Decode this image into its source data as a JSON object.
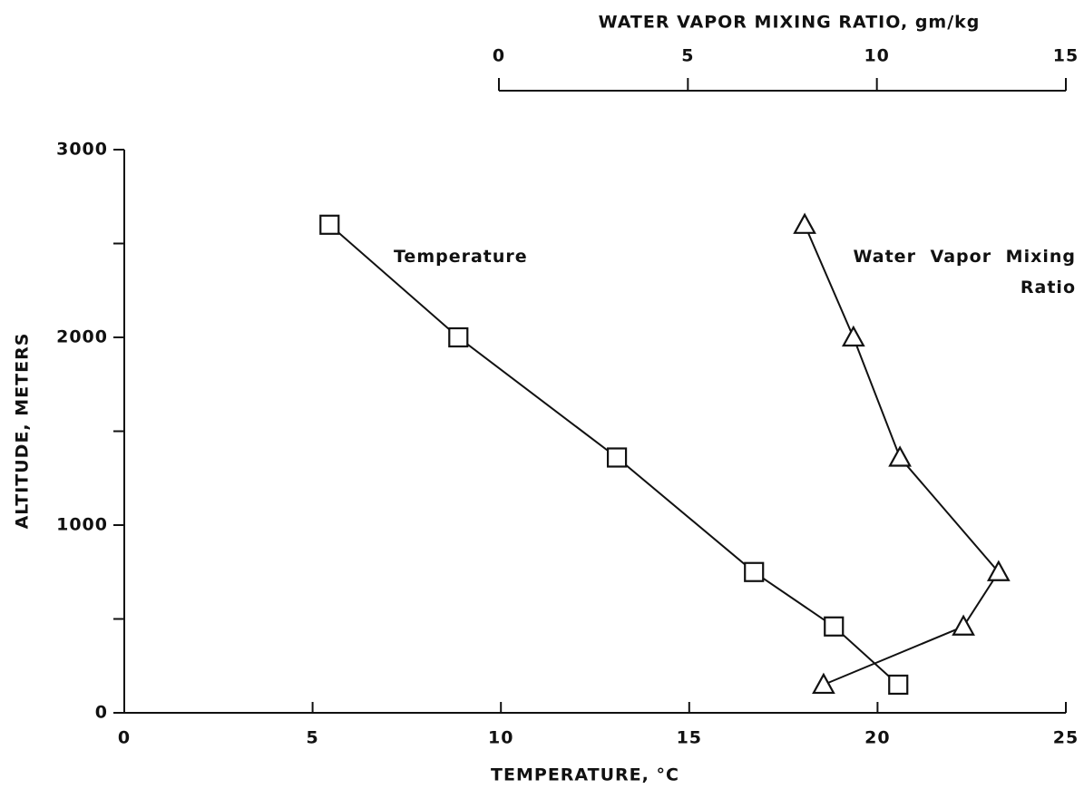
{
  "chart_data": {
    "type": "line",
    "xlabel": "TEMPERATURE, °C",
    "x2label": "WATER VAPOR MIXING RATIO, gm/kg",
    "ylabel": "ALTITUDE, METERS",
    "y": [
      2600,
      2000,
      1360,
      750,
      460,
      150
    ],
    "series": [
      {
        "name": "Temperature",
        "color": "#111111",
        "marker": "square",
        "values": [
          5.45,
          8.87,
          13.08,
          16.72,
          18.84,
          20.55
        ]
      },
      {
        "name": "Water Vapor Mixing Ratio",
        "color": "#111111",
        "marker": "triangle",
        "axis": "x2",
        "values": [
          8.09,
          9.38,
          10.61,
          13.22,
          12.29,
          8.59
        ]
      }
    ],
    "xlim": [
      0,
      25
    ],
    "xticks": [
      0,
      5,
      10,
      15,
      20,
      25
    ],
    "x2lim": [
      0,
      15
    ],
    "x2ticks": [
      0,
      5,
      10,
      15
    ],
    "ylim": [
      0,
      3000
    ],
    "yticks": [
      0,
      1000,
      2000,
      3000
    ],
    "yminorticks": [
      500,
      1500,
      2500
    ],
    "grid": false
  }
}
